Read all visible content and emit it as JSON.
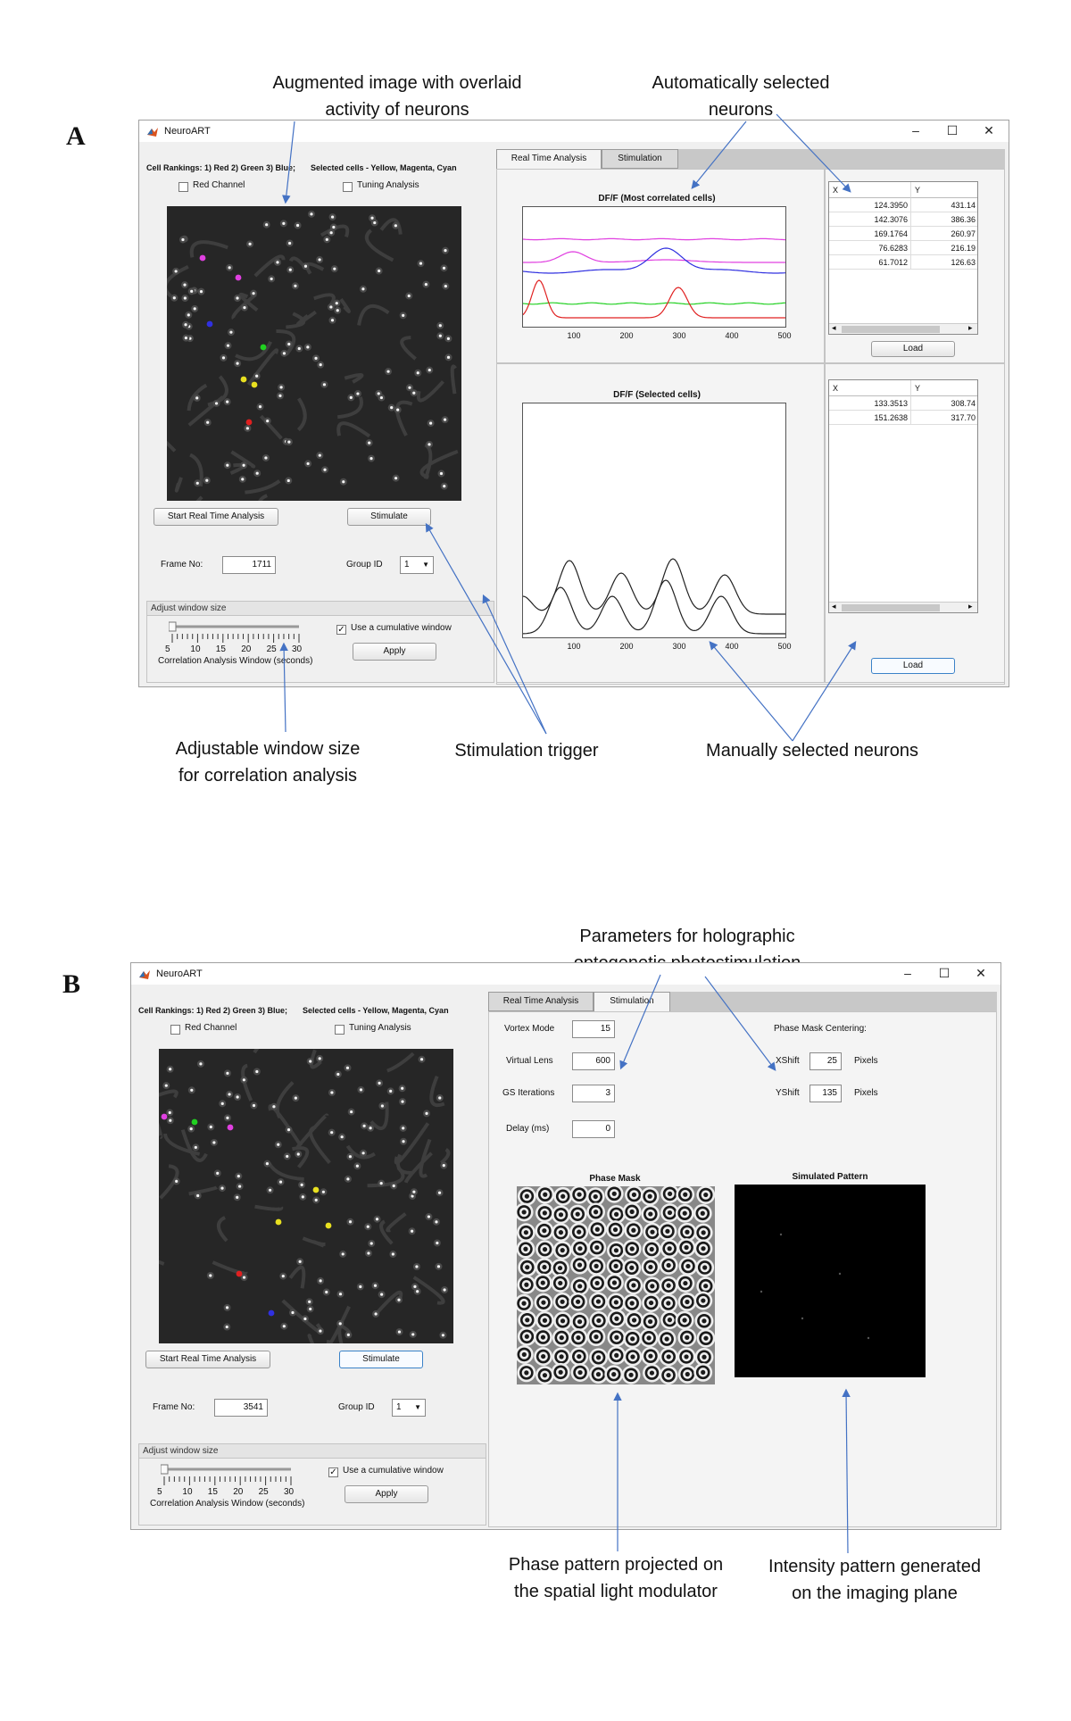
{
  "panelA": {
    "letter": "A",
    "annotations": {
      "augmented": [
        "Augmented image with overlaid",
        "activity of neurons"
      ],
      "auto_selected": [
        "Automatically selected",
        "neurons"
      ],
      "adjustable": [
        "Adjustable window size",
        "for correlation analysis"
      ],
      "stim_trigger": "Stimulation trigger",
      "manual_selected": "Manually selected neurons"
    },
    "window": {
      "title": "NeuroART",
      "controls": {
        "minimize": "–",
        "maximize": "☐",
        "close": "✕"
      },
      "cell_rankings": "Cell Rankings: 1) Red 2) Green 3) Blue;",
      "selected_cells": "Selected cells - Yellow, Magenta, Cyan",
      "red_channel": "Red Channel",
      "tuning_analysis": "Tuning Analysis",
      "start_rt": "Start Real Time Analysis",
      "stimulate": "Stimulate",
      "frame_no_label": "Frame No:",
      "frame_no": "1711",
      "group_id_label": "Group ID",
      "group_id": "1",
      "adjust_window": "Adjust window size",
      "cumulative": "Use a cumulative window",
      "cumulative_checked": "✓",
      "slider_ticks": [
        "5",
        "10",
        "15",
        "20",
        "25",
        "30"
      ],
      "slider_caption": "Correlation Analysis Window (seconds)",
      "apply": "Apply",
      "tabs": [
        "Real Time Analysis",
        "Stimulation"
      ],
      "plot1_title": "DF/F (Most correlated  cells)",
      "plot2_title": "DF/F (Selected cells)",
      "x_ticks": [
        "100",
        "200",
        "300",
        "400",
        "500"
      ],
      "table1": {
        "headers": [
          "X",
          "Y"
        ],
        "rows": [
          [
            "124.3950",
            "431.14"
          ],
          [
            "142.3076",
            "386.36"
          ],
          [
            "169.1764",
            "260.97"
          ],
          [
            "76.6283",
            "216.19"
          ],
          [
            "61.7012",
            "126.63"
          ]
        ]
      },
      "table2": {
        "headers": [
          "X",
          "Y"
        ],
        "rows": [
          [
            "133.3513",
            "308.74"
          ],
          [
            "151.2638",
            "317.70"
          ]
        ]
      },
      "load": "Load"
    }
  },
  "panelB": {
    "letter": "B",
    "annotations": {
      "params": [
        "Parameters for holographic",
        "optogenetic photostimulation"
      ],
      "phase_pattern": [
        "Phase pattern projected on",
        "the spatial light modulator"
      ],
      "intensity": [
        "Intensity pattern generated",
        "on the imaging plane"
      ]
    },
    "window": {
      "title": "NeuroART",
      "controls": {
        "minimize": "–",
        "maximize": "☐",
        "close": "✕"
      },
      "cell_rankings": "Cell Rankings: 1) Red 2) Green 3) Blue;",
      "selected_cells": "Selected cells - Yellow, Magenta, Cyan",
      "red_channel": "Red Channel",
      "tuning_analysis": "Tuning Analysis",
      "start_rt": "Start Real Time Analysis",
      "stimulate": "Stimulate",
      "frame_no_label": "Frame No:",
      "frame_no": "3541",
      "group_id_label": "Group ID",
      "group_id": "1",
      "adjust_window": "Adjust window size",
      "cumulative": "Use a cumulative window",
      "cumulative_checked": "✓",
      "slider_ticks": [
        "5",
        "10",
        "15",
        "20",
        "25",
        "30"
      ],
      "slider_caption": "Correlation Analysis Window (seconds)",
      "apply": "Apply",
      "tabs": [
        "Real Time Analysis",
        "Stimulation"
      ],
      "vortex_label": "Vortex Mode",
      "vortex": "15",
      "lens_label": "Virtual Lens",
      "lens": "600",
      "gs_label": "GS Iterations",
      "gs": "3",
      "delay_label": "Delay (ms)",
      "delay": "0",
      "centering": "Phase Mask Centering:",
      "xshift_label": "XShift",
      "xshift": "25",
      "yshift_label": "YShift",
      "yshift": "135",
      "pixels": "Pixels",
      "phase_mask": "Phase Mask",
      "sim_pattern": "Simulated Pattern"
    }
  },
  "colors": {
    "arrow": "#4472c4",
    "trace_magenta": "#e040e0",
    "trace_blue": "#3030e0",
    "trace_green": "#20d020",
    "trace_red": "#e02020"
  }
}
